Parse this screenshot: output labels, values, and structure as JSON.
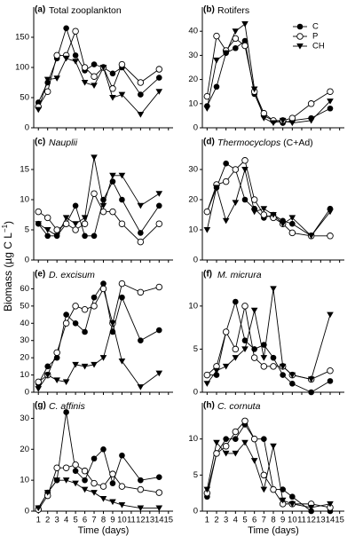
{
  "ylabel": {
    "text": "Biomass (µg C L",
    "superscript": "−1",
    "end": ")"
  },
  "xlabel": "Time (days)",
  "chart_data": [
    {
      "type": "line",
      "panel_label": "(a)",
      "title": "Total zooplankton",
      "title_style": "normal",
      "show_xtick_labels": false,
      "x": [
        1,
        2,
        3,
        4,
        5,
        6,
        7,
        8,
        9,
        10,
        12,
        14
      ],
      "xlim": [
        0.5,
        15.5
      ],
      "xticks": [
        1,
        2,
        3,
        4,
        5,
        6,
        7,
        8,
        9,
        10,
        11,
        12,
        13,
        14,
        15
      ],
      "ylim": [
        0,
        200
      ],
      "yticks": [
        0,
        50,
        100,
        150
      ],
      "series": [
        {
          "marker": "filled-circle",
          "values": [
            42,
            75,
            115,
            165,
            120,
            95,
            105,
            100,
            90,
            100,
            55,
            83
          ]
        },
        {
          "marker": "open-circle",
          "values": [
            35,
            60,
            120,
            120,
            160,
            100,
            85,
            100,
            65,
            105,
            75,
            97
          ]
        },
        {
          "marker": "triangle",
          "values": [
            30,
            80,
            82,
            115,
            110,
            75,
            70,
            100,
            50,
            55,
            22,
            60
          ]
        }
      ]
    },
    {
      "type": "line",
      "panel_label": "(b)",
      "title": "Rotifers",
      "title_style": "normal",
      "show_xtick_labels": false,
      "legend": "upper right",
      "x": [
        1,
        2,
        3,
        4,
        5,
        6,
        7,
        8,
        9,
        10,
        12,
        14
      ],
      "xlim": [
        0.5,
        15.5
      ],
      "xticks": [
        1,
        2,
        3,
        4,
        5,
        6,
        7,
        8,
        9,
        10,
        11,
        12,
        13,
        14,
        15
      ],
      "ylim": [
        0,
        50
      ],
      "yticks": [
        0,
        10,
        20,
        30,
        40
      ],
      "series": [
        {
          "name": "C",
          "marker": "filled-circle",
          "values": [
            9,
            17,
            31,
            33,
            36,
            14,
            5,
            3,
            2,
            3,
            4,
            8
          ]
        },
        {
          "name": "P",
          "marker": "open-circle",
          "values": [
            13,
            38,
            32,
            37,
            34,
            15,
            6,
            3,
            3,
            4,
            10,
            15
          ]
        },
        {
          "name": "CH",
          "marker": "triangle",
          "values": [
            8,
            28,
            31,
            40,
            43,
            16,
            4,
            2,
            3,
            2,
            3,
            11
          ]
        }
      ]
    },
    {
      "type": "line",
      "panel_label": "(c)",
      "title": "Nauplii",
      "title_style": "italic",
      "show_xtick_labels": false,
      "x": [
        1,
        2,
        3,
        4,
        5,
        6,
        7,
        8,
        9,
        10,
        12,
        14
      ],
      "xlim": [
        0.5,
        15.5
      ],
      "xticks": [
        1,
        2,
        3,
        4,
        5,
        6,
        7,
        8,
        9,
        10,
        11,
        12,
        13,
        14,
        15
      ],
      "ylim": [
        0,
        20
      ],
      "yticks": [
        0,
        5,
        10,
        15
      ],
      "series": [
        {
          "marker": "filled-circle",
          "values": [
            6,
            4,
            4,
            6,
            9,
            4,
            4,
            10,
            13,
            10,
            4.5,
            9
          ]
        },
        {
          "marker": "open-circle",
          "values": [
            8,
            7,
            5,
            6,
            5,
            6,
            11,
            8,
            8,
            6,
            3,
            6
          ]
        },
        {
          "marker": "triangle",
          "values": [
            6,
            5,
            4,
            7,
            6,
            7,
            17,
            9,
            14,
            14,
            9,
            11
          ]
        }
      ]
    },
    {
      "type": "line",
      "panel_label": "(d)",
      "title": "Thermocyclops",
      "title_note": "(C+Ad)",
      "title_style": "italic",
      "show_xtick_labels": false,
      "x": [
        1,
        2,
        3,
        4,
        5,
        6,
        7,
        8,
        9,
        10,
        12,
        14
      ],
      "xlim": [
        0.5,
        15.5
      ],
      "xticks": [
        1,
        2,
        3,
        4,
        5,
        6,
        7,
        8,
        9,
        10,
        11,
        12,
        13,
        14,
        15
      ],
      "ylim": [
        0,
        40
      ],
      "yticks": [
        0,
        10,
        20,
        30
      ],
      "series": [
        {
          "marker": "filled-circle",
          "values": [
            16,
            24,
            32,
            30,
            20,
            17,
            14,
            15,
            13,
            12,
            8,
            17
          ]
        },
        {
          "marker": "open-circle",
          "values": [
            16,
            25,
            26,
            30,
            33,
            20,
            15,
            14,
            12,
            9,
            8,
            8
          ]
        },
        {
          "marker": "triangle",
          "values": [
            10,
            24,
            13,
            19,
            30,
            16,
            17,
            15,
            12,
            14,
            8,
            16
          ]
        }
      ]
    },
    {
      "type": "line",
      "panel_label": "(e)",
      "title": "D. excisum",
      "title_style": "italic",
      "show_xtick_labels": false,
      "x": [
        1,
        2,
        3,
        4,
        5,
        6,
        7,
        8,
        9,
        10,
        12,
        14
      ],
      "xlim": [
        0.5,
        15.5
      ],
      "xticks": [
        1,
        2,
        3,
        4,
        5,
        6,
        7,
        8,
        9,
        10,
        11,
        12,
        13,
        14,
        15
      ],
      "ylim": [
        0,
        70
      ],
      "yticks": [
        0,
        10,
        20,
        30,
        40,
        50,
        60
      ],
      "series": [
        {
          "marker": "filled-circle",
          "values": [
            5,
            15,
            20,
            45,
            40,
            35,
            55,
            63,
            35,
            55,
            30,
            36
          ]
        },
        {
          "marker": "open-circle",
          "values": [
            6,
            10,
            23,
            40,
            50,
            48,
            50,
            60,
            40,
            63,
            58,
            61
          ]
        },
        {
          "marker": "triangle",
          "values": [
            2,
            10,
            7,
            6,
            16,
            15,
            16,
            20,
            40,
            18,
            3,
            11
          ]
        }
      ]
    },
    {
      "type": "line",
      "panel_label": "(f)",
      "title": "M. micrura",
      "title_style": "italic",
      "show_xtick_labels": false,
      "x": [
        1,
        2,
        3,
        4,
        5,
        6,
        7,
        8,
        9,
        10,
        12,
        14
      ],
      "xlim": [
        0.5,
        15.5
      ],
      "xticks": [
        1,
        2,
        3,
        4,
        5,
        6,
        7,
        8,
        9,
        10,
        11,
        12,
        13,
        14,
        15
      ],
      "ylim": [
        0,
        14
      ],
      "yticks": [
        0,
        5,
        10
      ],
      "series": [
        {
          "marker": "filled-circle",
          "values": [
            2,
            2,
            7,
            10.5,
            6,
            5,
            5.5,
            4,
            2,
            1,
            0,
            1.3
          ]
        },
        {
          "marker": "open-circle",
          "values": [
            2,
            3,
            7,
            5,
            10,
            4,
            3,
            3,
            3,
            2,
            1.5,
            2.5
          ]
        },
        {
          "marker": "triangle",
          "values": [
            1,
            2.5,
            3,
            4,
            5,
            9.5,
            4,
            12,
            3,
            2,
            1.5,
            9
          ]
        }
      ]
    },
    {
      "type": "line",
      "panel_label": "(g)",
      "title": "C. affinis",
      "title_style": "italic",
      "show_xtick_labels": true,
      "x": [
        1,
        2,
        3,
        4,
        5,
        6,
        7,
        8,
        9,
        10,
        12,
        14
      ],
      "xlim": [
        0.5,
        15.5
      ],
      "xticks": [
        1,
        2,
        3,
        4,
        5,
        6,
        7,
        8,
        9,
        10,
        11,
        12,
        13,
        14,
        15
      ],
      "ylim": [
        0,
        35
      ],
      "yticks": [
        0,
        10,
        20,
        30
      ],
      "series": [
        {
          "marker": "filled-circle",
          "values": [
            1,
            6,
            10,
            32,
            13,
            10,
            17,
            20,
            9,
            18,
            10,
            11
          ]
        },
        {
          "marker": "open-circle",
          "values": [
            0.5,
            5,
            14,
            14,
            15,
            13,
            9,
            8,
            12,
            8,
            7,
            6
          ]
        },
        {
          "marker": "triangle",
          "values": [
            1,
            6,
            10,
            10,
            9,
            7,
            6,
            4,
            3,
            2,
            1,
            1
          ]
        }
      ]
    },
    {
      "type": "line",
      "panel_label": "(h)",
      "title": "C. cornuta",
      "title_style": "italic",
      "show_xtick_labels": true,
      "x": [
        1,
        2,
        3,
        4,
        5,
        6,
        7,
        8,
        9,
        10,
        12,
        14
      ],
      "xlim": [
        0.5,
        15.5
      ],
      "xticks": [
        1,
        2,
        3,
        4,
        5,
        6,
        7,
        8,
        9,
        10,
        11,
        12,
        13,
        14,
        15
      ],
      "ylim": [
        0,
        15
      ],
      "yticks": [
        0,
        5,
        10
      ],
      "series": [
        {
          "marker": "filled-circle",
          "values": [
            2,
            8,
            10,
            10,
            12,
            10,
            10,
            3,
            3,
            2,
            0,
            0
          ]
        },
        {
          "marker": "open-circle",
          "values": [
            2.5,
            8,
            9,
            11,
            12.5,
            10,
            5,
            3,
            1,
            1,
            1,
            0.5
          ]
        },
        {
          "marker": "triangle",
          "values": [
            3,
            9.5,
            8,
            8,
            9.5,
            7,
            3,
            9,
            1.5,
            1,
            0.5,
            1
          ]
        }
      ]
    }
  ]
}
